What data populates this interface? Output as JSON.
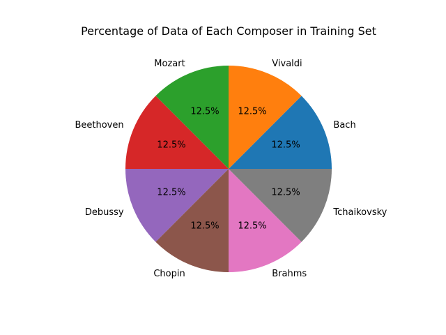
{
  "chart_data": {
    "type": "pie",
    "title": "Percentage of Data of Each Composer in Training Set",
    "labels": [
      "Bach",
      "Vivaldi",
      "Mozart",
      "Beethoven",
      "Debussy",
      "Chopin",
      "Brahms",
      "Tchaikovsky"
    ],
    "values": [
      12.5,
      12.5,
      12.5,
      12.5,
      12.5,
      12.5,
      12.5,
      12.5
    ],
    "percent_labels": [
      "12.5%",
      "12.5%",
      "12.5%",
      "12.5%",
      "12.5%",
      "12.5%",
      "12.5%",
      "12.5%"
    ],
    "colors": [
      "#1f77b4",
      "#ff7f0e",
      "#2ca02c",
      "#d62728",
      "#9467bd",
      "#8c564b",
      "#e377c2",
      "#7f7f7f"
    ],
    "start_angle_deg": 0,
    "direction": "counterclockwise"
  }
}
